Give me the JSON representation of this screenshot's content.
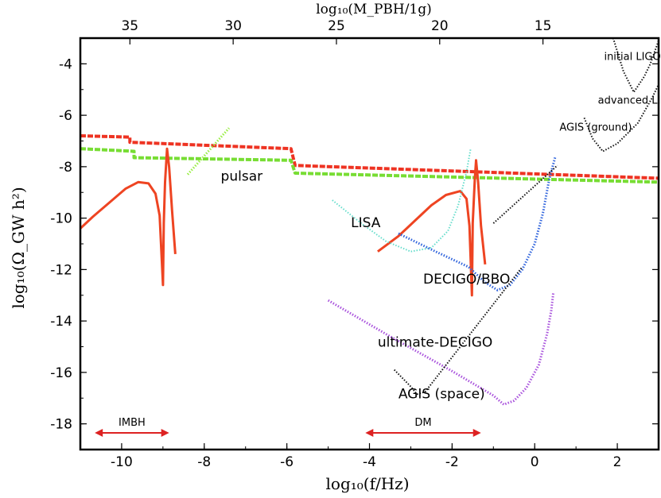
{
  "chart_data": {
    "type": "line",
    "xlabel": "log₁₀(f/Hz)",
    "ylabel": "log₁₀(Ω_GW h²)",
    "top_xlabel": "log₁₀(M_PBH/1g)",
    "xlim": [
      -11,
      3
    ],
    "ylim": [
      -19,
      -3
    ],
    "x_ticks": [
      {
        "value": -10,
        "label": "-10"
      },
      {
        "value": -8,
        "label": "-8"
      },
      {
        "value": -6,
        "label": "-6"
      },
      {
        "value": -4,
        "label": "-4"
      },
      {
        "value": -2,
        "label": "-2"
      },
      {
        "value": 0,
        "label": "0"
      },
      {
        "value": 2,
        "label": "2"
      }
    ],
    "y_ticks": [
      {
        "value": -4,
        "label": "-4"
      },
      {
        "value": -6,
        "label": "-6"
      },
      {
        "value": -8,
        "label": "-8"
      },
      {
        "value": -10,
        "label": "-10"
      },
      {
        "value": -12,
        "label": "-12"
      },
      {
        "value": -14,
        "label": "-14"
      },
      {
        "value": -16,
        "label": "-16"
      },
      {
        "value": -18,
        "label": "-18"
      }
    ],
    "top_ticks": [
      {
        "x": -9.8,
        "label": "35"
      },
      {
        "x": -7.3,
        "label": "30"
      },
      {
        "x": -4.8,
        "label": "25"
      },
      {
        "x": -2.3,
        "label": "20"
      },
      {
        "x": 0.2,
        "label": "15"
      }
    ],
    "series": [
      {
        "color": "#ee3322",
        "style": "dashed",
        "width": 4,
        "points": [
          [
            -11,
            -6.8
          ],
          [
            -9.8,
            -6.85
          ],
          [
            -9.8,
            -7.05
          ],
          [
            -5.9,
            -7.3
          ],
          [
            -5.8,
            -7.95
          ],
          [
            3,
            -8.45
          ]
        ]
      },
      {
        "color": "#77dd33",
        "style": "dashed",
        "width": 4,
        "points": [
          [
            -11,
            -7.3
          ],
          [
            -9.7,
            -7.4
          ],
          [
            -9.7,
            -7.65
          ],
          [
            -5.9,
            -7.75
          ],
          [
            -5.8,
            -8.25
          ],
          [
            3,
            -8.6
          ]
        ]
      },
      {
        "color": "#ee4422",
        "style": "solid",
        "width": 3,
        "points": [
          [
            -11,
            -10.4
          ],
          [
            -10.7,
            -9.95
          ],
          [
            -10.3,
            -9.4
          ],
          [
            -9.9,
            -8.85
          ],
          [
            -9.6,
            -8.6
          ],
          [
            -9.35,
            -8.65
          ],
          [
            -9.18,
            -9.05
          ],
          [
            -9.08,
            -9.9
          ],
          [
            -9.0,
            -12.6
          ],
          [
            -8.98,
            -10.2
          ],
          [
            -8.95,
            -8.6
          ],
          [
            -8.9,
            -7.3
          ],
          [
            -8.85,
            -8.0
          ],
          [
            -8.78,
            -9.7
          ],
          [
            -8.7,
            -11.4
          ]
        ]
      },
      {
        "color": "#ee4422",
        "style": "solid",
        "width": 3,
        "points": [
          [
            -3.8,
            -11.3
          ],
          [
            -3.3,
            -10.7
          ],
          [
            -2.9,
            -10.1
          ],
          [
            -2.5,
            -9.5
          ],
          [
            -2.15,
            -9.1
          ],
          [
            -1.8,
            -8.95
          ],
          [
            -1.65,
            -9.25
          ],
          [
            -1.58,
            -10.3
          ],
          [
            -1.52,
            -13.0
          ],
          [
            -1.5,
            -10.2
          ],
          [
            -1.45,
            -8.5
          ],
          [
            -1.42,
            -7.75
          ],
          [
            -1.37,
            -8.6
          ],
          [
            -1.3,
            -10.3
          ],
          [
            -1.2,
            -11.8
          ]
        ]
      },
      {
        "color": "#99ee44",
        "style": "dotted",
        "width": 3,
        "points": [
          [
            -8.4,
            -8.3
          ],
          [
            -7.4,
            -6.5
          ]
        ]
      },
      {
        "color": "#66ddcc",
        "style": "dotted",
        "width": 2,
        "points": [
          [
            -4.9,
            -9.3
          ],
          [
            -4.2,
            -10.2
          ],
          [
            -3.6,
            -10.9
          ],
          [
            -3.0,
            -11.3
          ],
          [
            -2.5,
            -11.15
          ],
          [
            -2.1,
            -10.5
          ],
          [
            -1.85,
            -9.5
          ],
          [
            -1.65,
            -8.2
          ],
          [
            -1.55,
            -7.3
          ]
        ]
      },
      {
        "color": "#3366dd",
        "style": "dotted",
        "width": 3,
        "points": [
          [
            -3.3,
            -10.6
          ],
          [
            -2.4,
            -11.3
          ],
          [
            -1.6,
            -11.9
          ],
          [
            -1.2,
            -12.5
          ],
          [
            -0.9,
            -12.8
          ],
          [
            -0.6,
            -12.6
          ],
          [
            -0.3,
            -12.0
          ],
          [
            0.0,
            -11.0
          ],
          [
            0.2,
            -9.8
          ],
          [
            0.35,
            -8.5
          ],
          [
            0.5,
            -7.6
          ]
        ]
      },
      {
        "color": "#aa55dd",
        "style": "dotted",
        "width": 3,
        "points": [
          [
            -5.0,
            -13.2
          ],
          [
            -3.5,
            -14.6
          ],
          [
            -2.0,
            -15.95
          ],
          [
            -1.0,
            -16.9
          ],
          [
            -0.75,
            -17.25
          ],
          [
            -0.5,
            -17.1
          ],
          [
            -0.2,
            -16.6
          ],
          [
            0.1,
            -15.7
          ],
          [
            0.3,
            -14.5
          ],
          [
            0.4,
            -13.6
          ],
          [
            0.45,
            -12.9
          ]
        ]
      },
      {
        "color": "#111111",
        "style": "dotted",
        "width": 2,
        "points": [
          [
            -3.4,
            -15.9
          ],
          [
            -3.0,
            -16.55
          ],
          [
            -2.85,
            -16.85
          ],
          [
            -2.65,
            -16.75
          ],
          [
            -0.3,
            -11.9
          ]
        ]
      },
      {
        "color": "#111111",
        "style": "dotted",
        "width": 2,
        "points": [
          [
            -1.0,
            -10.2
          ],
          [
            0.55,
            -7.95
          ]
        ]
      },
      {
        "color": "#111111",
        "style": "dotted",
        "width": 2,
        "points": [
          [
            1.2,
            -6.1
          ],
          [
            1.4,
            -6.9
          ],
          [
            1.65,
            -7.4
          ],
          [
            2.0,
            -7.1
          ],
          [
            2.5,
            -6.3
          ],
          [
            2.85,
            -5.3
          ],
          [
            3.0,
            -4.8
          ]
        ]
      },
      {
        "color": "#111111",
        "style": "dotted",
        "width": 2,
        "points": [
          [
            1.9,
            -3.0
          ],
          [
            2.15,
            -4.3
          ],
          [
            2.4,
            -5.1
          ],
          [
            2.65,
            -4.5
          ],
          [
            2.8,
            -4.0
          ],
          [
            3.0,
            -3.1
          ]
        ]
      }
    ],
    "labels": [
      {
        "text": "initial LIGO",
        "x": 1.68,
        "y": -3.85,
        "size": 13
      },
      {
        "text": "advanced LIGO",
        "x": 1.53,
        "y": -5.55,
        "size": 13
      },
      {
        "text": "AGIS (ground)",
        "x": 0.6,
        "y": -6.6,
        "size": 13
      },
      {
        "text": "pulsar",
        "x": -7.6,
        "y": -8.55,
        "size": 17
      },
      {
        "text": "LISA",
        "x": -4.45,
        "y": -10.35,
        "size": 17
      },
      {
        "text": "DECIGO/BBO",
        "x": -2.7,
        "y": -12.55,
        "size": 17
      },
      {
        "text": "ultimate-DECIGO",
        "x": -3.8,
        "y": -15.0,
        "size": 17
      },
      {
        "text": "AGIS (space)",
        "x": -3.3,
        "y": -17.0,
        "size": 17
      }
    ],
    "ranges": [
      {
        "label": "IMBH",
        "x1": -10.65,
        "x2": -8.85,
        "y": -18.35,
        "label_x": -9.75
      },
      {
        "label": "DM",
        "x1": -4.1,
        "x2": -1.3,
        "y": -18.35,
        "label_x": -2.7
      }
    ]
  }
}
